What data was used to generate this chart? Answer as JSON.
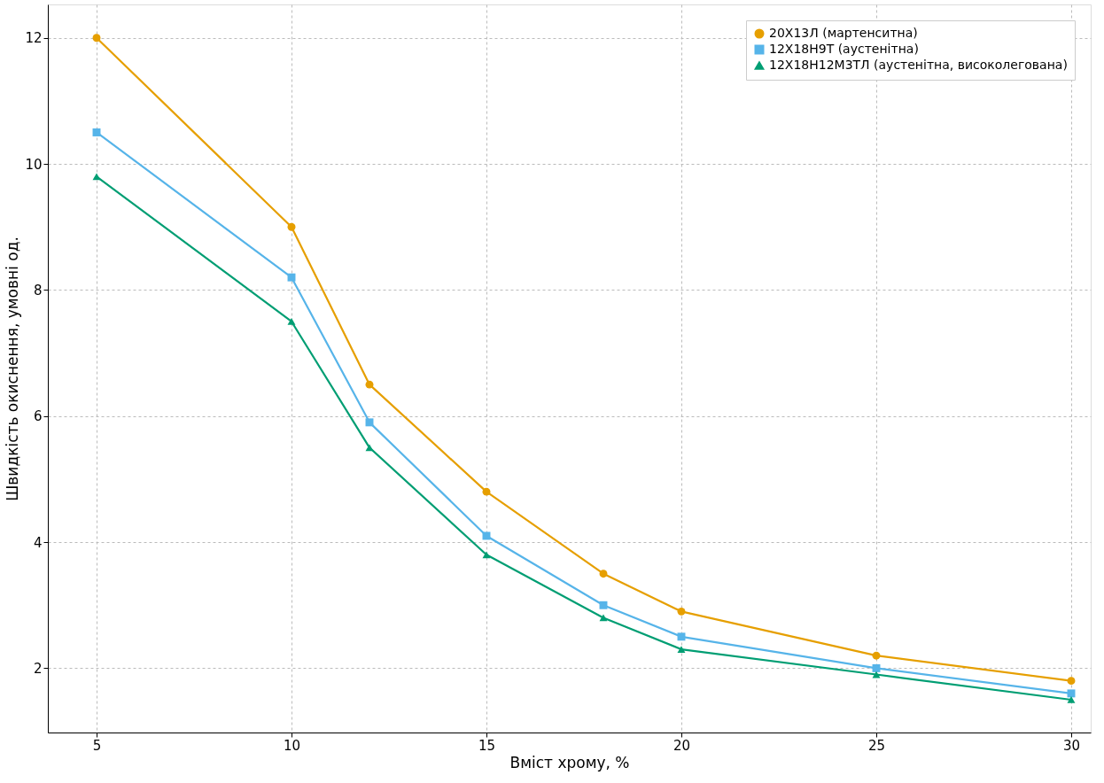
{
  "chart_data": {
    "type": "line",
    "xlabel": "Вміст хрому, %",
    "ylabel": "Швидкість окиснення, умовні од.",
    "x": [
      5,
      10,
      12,
      15,
      18,
      20,
      25,
      30
    ],
    "series": [
      {
        "name": "20Х13Л (мартенситна)",
        "color": "#e69f00",
        "marker": "circle",
        "values": [
          12,
          9.0,
          6.5,
          4.8,
          3.5,
          2.9,
          2.2,
          1.8
        ]
      },
      {
        "name": "12Х18Н9Т (аустенітна)",
        "color": "#56b4e9",
        "marker": "square",
        "values": [
          10.5,
          8.2,
          5.9,
          4.1,
          3.0,
          2.5,
          2.0,
          1.6
        ]
      },
      {
        "name": "12Х18Н12М3ТЛ (аустенітна, високолегована)",
        "color": "#009e73",
        "marker": "triangle",
        "values": [
          9.8,
          7.5,
          5.5,
          3.8,
          2.8,
          2.3,
          1.9,
          1.5
        ]
      }
    ],
    "xlim": [
      3.75,
      30.5
    ],
    "ylim": [
      0.98,
      12.53
    ],
    "xticks": [
      5,
      10,
      15,
      20,
      25,
      30
    ],
    "yticks": [
      2,
      4,
      6,
      8,
      10,
      12
    ],
    "grid": true,
    "legend": "top right",
    "line_style": "solid"
  }
}
